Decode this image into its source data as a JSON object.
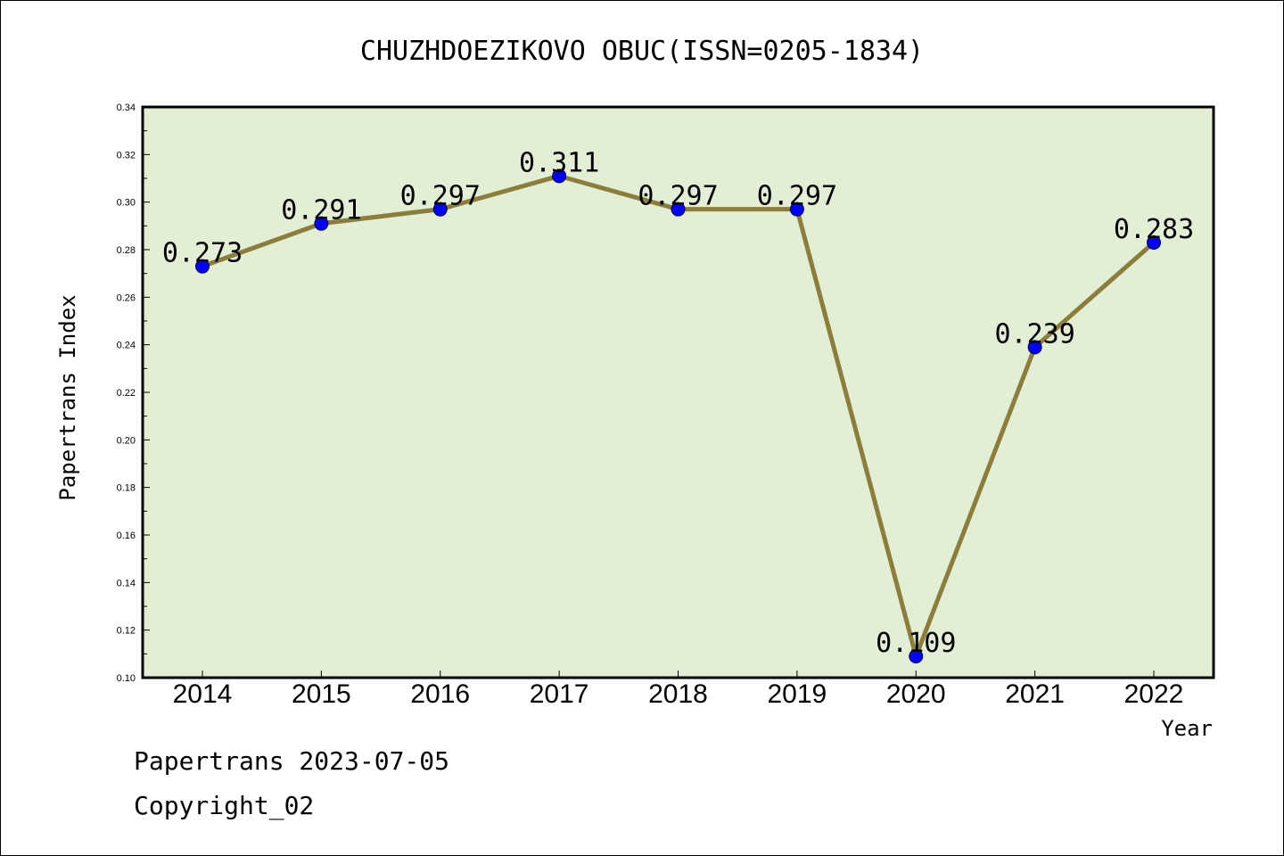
{
  "chart_data": {
    "type": "line",
    "title": "CHUZHDOEZIKOVO OBUC(ISSN=0205-1834)",
    "xlabel": "Year",
    "ylabel": "Papertrans Index",
    "categories": [
      "2014",
      "2015",
      "2016",
      "2017",
      "2018",
      "2019",
      "2020",
      "2021",
      "2022"
    ],
    "values": [
      0.273,
      0.291,
      0.297,
      0.311,
      0.297,
      0.297,
      0.109,
      0.239,
      0.283
    ],
    "data_labels": [
      "0.273",
      "0.291",
      "0.297",
      "0.311",
      "0.297",
      "0.297",
      "0.109",
      "0.239",
      "0.283"
    ],
    "ylim": [
      0.1,
      0.34
    ],
    "yticks": [
      "0.10",
      "0.12",
      "0.14",
      "0.16",
      "0.18",
      "0.20",
      "0.22",
      "0.24",
      "0.26",
      "0.28",
      "0.30",
      "0.32",
      "0.34"
    ],
    "grid": false,
    "colors": {
      "plot_background": "#e2efd5",
      "line": "#8b7d3a",
      "marker": "#0000ff"
    }
  },
  "footer": {
    "line1": "Papertrans 2023-07-05",
    "line2": "Copyright_02"
  }
}
